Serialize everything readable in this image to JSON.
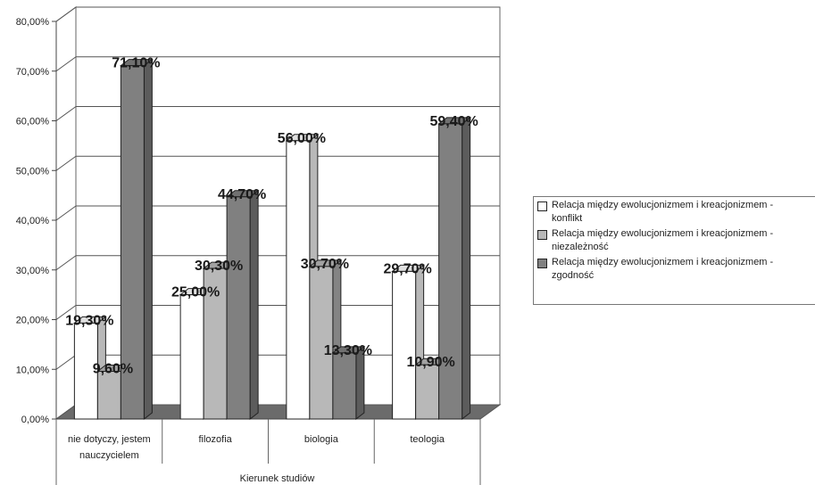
{
  "chart_data": {
    "type": "bar",
    "xlabel": "Kierunek studiów",
    "ylabel": "",
    "ylim": [
      0,
      80
    ],
    "yticks": [
      "0,00%",
      "10,00%",
      "20,00%",
      "30,00%",
      "40,00%",
      "50,00%",
      "60,00%",
      "70,00%",
      "80,00%"
    ],
    "categories": [
      [
        "nie dotyczy, jestem",
        "nauczycielem"
      ],
      [
        "filozofia"
      ],
      [
        "biologia"
      ],
      [
        "teologia"
      ]
    ],
    "series": [
      {
        "name_line1": "Relacja między ewolucjonizmem i kreacjonizmem -",
        "name_line2": "konflikt",
        "color": "#ffffff",
        "values": [
          19.3,
          25.0,
          56.0,
          29.7
        ],
        "labels": [
          "19,30%",
          "25,00%",
          "56,00%",
          "29,70%"
        ]
      },
      {
        "name_line1": "Relacja między ewolucjonizmem i kreacjonizmem -",
        "name_line2": "niezależność",
        "color": "#b8b8b8",
        "values": [
          9.6,
          30.3,
          30.7,
          10.9
        ],
        "labels": [
          "9,60%",
          "30,30%",
          "30,70%",
          "10,90%"
        ]
      },
      {
        "name_line1": "Relacja między ewolucjonizmem i kreacjonizmem -",
        "name_line2": "zgodność",
        "color": "#808080",
        "values": [
          71.1,
          44.7,
          13.3,
          59.4
        ],
        "labels": [
          "71,10%",
          "44,70%",
          "13,30%",
          "59,40%"
        ]
      }
    ],
    "legend_position": "right",
    "grid": true
  }
}
